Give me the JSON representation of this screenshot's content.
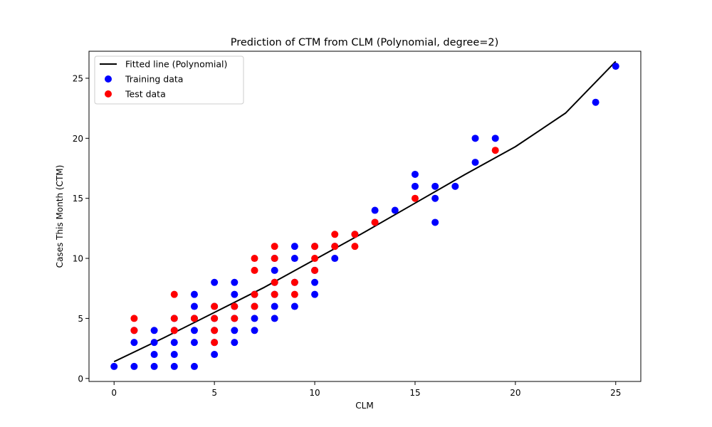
{
  "chart_data": {
    "type": "scatter",
    "title": "Prediction of CTM from CLM (Polynomial, degree=2)",
    "xlabel": "CLM",
    "ylabel": "Cases This Month (CTM)",
    "xlim": [
      -1.25,
      26.25
    ],
    "ylim": [
      -0.25,
      27.25
    ],
    "xticks": [
      0,
      5,
      10,
      15,
      20,
      25
    ],
    "yticks": [
      0,
      5,
      10,
      15,
      20,
      25
    ],
    "grid": false,
    "legend_position": "top-left",
    "series": [
      {
        "name": "Fitted line (Polynomial)",
        "kind": "line",
        "color": "#000000",
        "x": [
          0,
          2.5,
          5,
          7.5,
          10,
          12.5,
          15,
          17.5,
          20,
          22.5,
          25
        ],
        "y": [
          1.4,
          3.4,
          5.5,
          7.6,
          9.9,
          12.2,
          14.6,
          17.0,
          19.3,
          22.1,
          26.4
        ]
      },
      {
        "name": "Training data",
        "kind": "scatter",
        "color": "#0000ff",
        "points": [
          [
            0,
            1
          ],
          [
            1,
            1
          ],
          [
            1,
            3
          ],
          [
            1,
            4
          ],
          [
            2,
            1
          ],
          [
            2,
            2
          ],
          [
            2,
            3
          ],
          [
            2,
            4
          ],
          [
            3,
            1
          ],
          [
            3,
            2
          ],
          [
            3,
            3
          ],
          [
            3,
            4
          ],
          [
            3,
            5
          ],
          [
            4,
            1
          ],
          [
            4,
            3
          ],
          [
            4,
            4
          ],
          [
            4,
            5
          ],
          [
            4,
            6
          ],
          [
            4,
            7
          ],
          [
            5,
            2
          ],
          [
            5,
            3
          ],
          [
            5,
            4
          ],
          [
            5,
            5
          ],
          [
            5,
            6
          ],
          [
            5,
            8
          ],
          [
            6,
            3
          ],
          [
            6,
            4
          ],
          [
            6,
            5
          ],
          [
            6,
            6
          ],
          [
            6,
            7
          ],
          [
            6,
            8
          ],
          [
            7,
            4
          ],
          [
            7,
            5
          ],
          [
            7,
            6
          ],
          [
            7,
            7
          ],
          [
            8,
            5
          ],
          [
            8,
            6
          ],
          [
            8,
            7
          ],
          [
            8,
            8
          ],
          [
            8,
            9
          ],
          [
            8,
            10
          ],
          [
            9,
            6
          ],
          [
            9,
            8
          ],
          [
            9,
            10
          ],
          [
            9,
            11
          ],
          [
            10,
            7
          ],
          [
            10,
            8
          ],
          [
            10,
            9
          ],
          [
            10,
            11
          ],
          [
            11,
            10
          ],
          [
            11,
            11
          ],
          [
            12,
            12
          ],
          [
            13,
            13
          ],
          [
            13,
            14
          ],
          [
            14,
            14
          ],
          [
            15,
            16
          ],
          [
            15,
            17
          ],
          [
            16,
            13
          ],
          [
            16,
            15
          ],
          [
            16,
            16
          ],
          [
            17,
            16
          ],
          [
            18,
            18
          ],
          [
            18,
            20
          ],
          [
            19,
            20
          ],
          [
            24,
            23
          ],
          [
            25,
            26
          ]
        ]
      },
      {
        "name": "Test data",
        "kind": "scatter",
        "color": "#ff0000",
        "points": [
          [
            1,
            4
          ],
          [
            1,
            5
          ],
          [
            3,
            4
          ],
          [
            3,
            5
          ],
          [
            3,
            7
          ],
          [
            4,
            5
          ],
          [
            5,
            3
          ],
          [
            5,
            4
          ],
          [
            5,
            5
          ],
          [
            5,
            6
          ],
          [
            6,
            5
          ],
          [
            6,
            6
          ],
          [
            7,
            6
          ],
          [
            7,
            7
          ],
          [
            7,
            9
          ],
          [
            7,
            10
          ],
          [
            8,
            7
          ],
          [
            8,
            8
          ],
          [
            8,
            10
          ],
          [
            8,
            11
          ],
          [
            9,
            7
          ],
          [
            9,
            8
          ],
          [
            10,
            9
          ],
          [
            10,
            10
          ],
          [
            10,
            11
          ],
          [
            11,
            11
          ],
          [
            11,
            12
          ],
          [
            12,
            11
          ],
          [
            12,
            12
          ],
          [
            13,
            13
          ],
          [
            15,
            15
          ],
          [
            19,
            19
          ]
        ]
      }
    ]
  }
}
